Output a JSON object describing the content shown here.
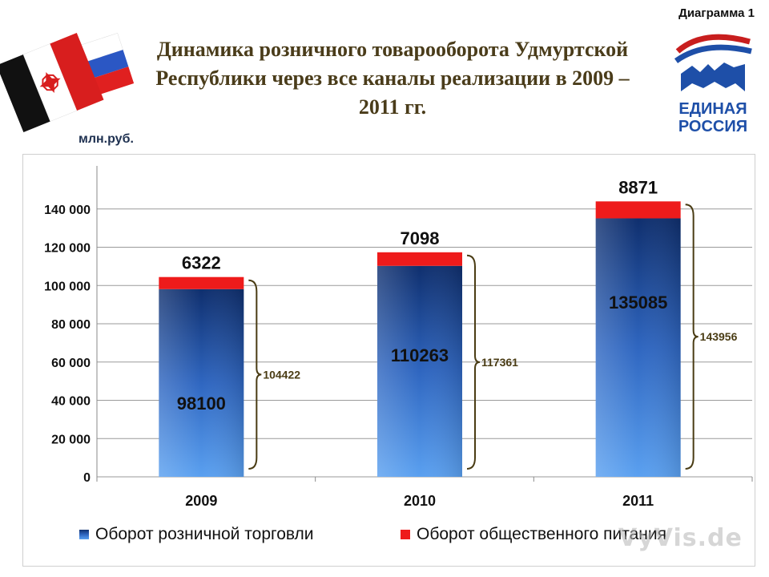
{
  "slide_label": "Диаграмма 1",
  "title": "Динамика розничного товарооборота Удмуртской Республики через все каналы реализации в 2009 – 2011  гг.",
  "unit": "млн.руб.",
  "party_logo": {
    "line1": "ЕДИНАЯ",
    "line2": "РОССИЯ"
  },
  "watermark": "VyVis.de",
  "colors": {
    "retail_dark": "#0f2f6e",
    "retail_light": "#5aa0f0",
    "catering": "#ee1b1b",
    "brace": "#4a3c14",
    "title": "#4a3c1a"
  },
  "chart_data": {
    "type": "bar",
    "stacked": true,
    "categories": [
      "2009",
      "2010",
      "2011"
    ],
    "series": [
      {
        "name": "Оборот розничной торговли",
        "values": [
          98100,
          110263,
          135085
        ]
      },
      {
        "name": "Оборот общественного питания",
        "values": [
          6322,
          7098,
          8871
        ]
      }
    ],
    "totals": [
      104422,
      117361,
      143956
    ],
    "value_labels": {
      "retail": [
        "98100",
        "110263",
        "135085"
      ],
      "catering": [
        "6322",
        "7098",
        "8871"
      ],
      "totals": [
        "104422",
        "117361",
        "143956"
      ]
    },
    "y_ticks": [
      "0",
      "20 000",
      "40 000",
      "60 000",
      "80 000",
      "100 000",
      "120 000",
      "140 000"
    ],
    "y_tick_values": [
      0,
      20000,
      40000,
      60000,
      80000,
      100000,
      120000,
      140000
    ],
    "ylim": [
      0,
      160000
    ],
    "grid": true,
    "legend_position": "bottom"
  }
}
